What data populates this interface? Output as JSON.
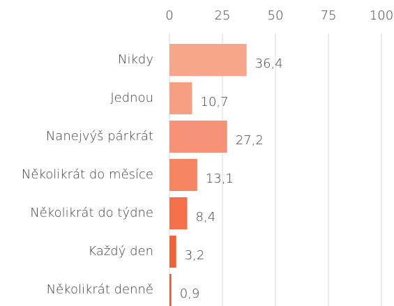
{
  "chart_data": {
    "type": "bar",
    "orientation": "horizontal",
    "categories": [
      "Nikdy",
      "Jednou",
      "Nanejvýš párkrát",
      "Několikrát do měsíce",
      "Několikrát do týdne",
      "Každý den",
      "Několikrát denně"
    ],
    "values": [
      36.4,
      10.7,
      27.2,
      13.1,
      8.4,
      3.2,
      0.9
    ],
    "value_labels": [
      "36,4",
      "10,7",
      "27,2",
      "13,1",
      "8,4",
      "3,2",
      "0,9"
    ],
    "colors": [
      "#f7a68b",
      "#f6a083",
      "#f59277",
      "#f48462",
      "#f2714a",
      "#f0643a",
      "#ee5a30"
    ],
    "xlim": [
      0,
      100
    ],
    "xticks": [
      0,
      25,
      50,
      75,
      100
    ],
    "grid": true
  }
}
